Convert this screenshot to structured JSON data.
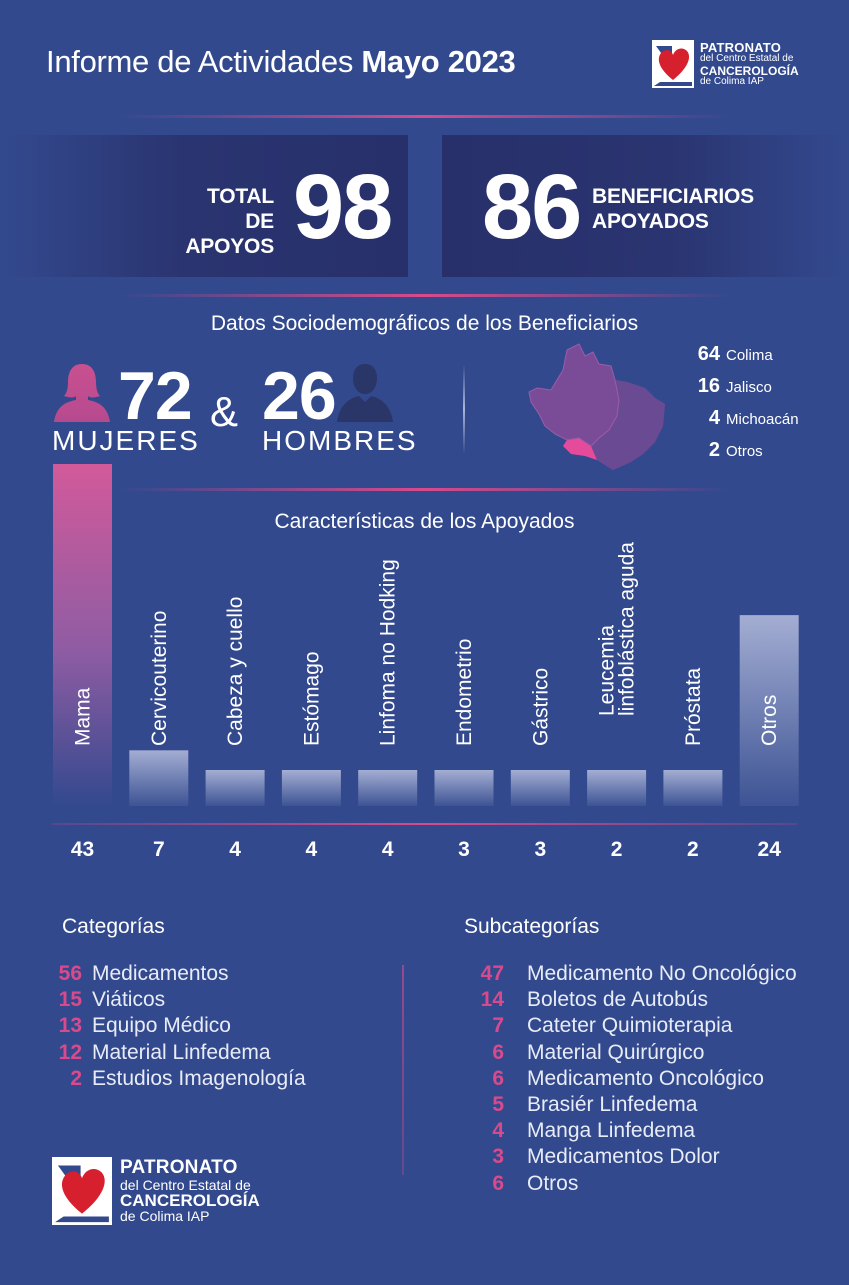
{
  "header": {
    "title_prefix": "Informe de Actividades",
    "title_bold": "Mayo 2023"
  },
  "logo": {
    "line1": "PATRONATO",
    "line2": "del Centro Estatal de",
    "line3": "CANCEROLOGÍA",
    "line4": "de Colima IAP"
  },
  "totals": {
    "apoyos_label_1": "TOTAL DE",
    "apoyos_label_2": "APOYOS",
    "apoyos_value": "98",
    "beneficiarios_value": "86",
    "beneficiarios_label_1": "BENEFICIARIOS",
    "beneficiarios_label_2": "APOYADOS"
  },
  "socio": {
    "title": "Datos Sociodemográficos de los Beneficiarios",
    "women_value": "72",
    "women_label": "MUJERES",
    "amp": "&",
    "men_value": "26",
    "men_label": "HOMBRES",
    "states": [
      {
        "value": "64",
        "name": "Colima"
      },
      {
        "value": "16",
        "name": "Jalisco"
      },
      {
        "value": "4",
        "name": "Michoacán"
      },
      {
        "value": "2",
        "name": "Otros"
      }
    ]
  },
  "colors": {
    "background": "#33498e",
    "accent_pink": "#d84a8c",
    "panel_dark": "#27306a",
    "bar_light": "#9aa6cf"
  },
  "icons": {
    "woman": "woman-silhouette-icon",
    "man": "man-silhouette-icon",
    "map": "jalisco-colima-map-icon",
    "logo": "heart-logo-icon"
  },
  "chart_data": {
    "type": "bar",
    "title": "Características de los Apoyados",
    "categories": [
      "Mama",
      "Cervicouterino",
      "Cabeza y cuello",
      "Estómago",
      "Linfoma no Hodking",
      "Endometrio",
      "Gástrico",
      "Leucemia linfoblástica aguda",
      "Próstata",
      "Otros"
    ],
    "category_lines": [
      [
        "Mama"
      ],
      [
        "Cervicouterino"
      ],
      [
        "Cabeza y cuello"
      ],
      [
        "Estómago"
      ],
      [
        "Linfoma no Hodking"
      ],
      [
        "Endometrio"
      ],
      [
        "Gástrico"
      ],
      [
        "Leucemia",
        "linfoblástica aguda"
      ],
      [
        "Próstata"
      ],
      [
        "Otros"
      ]
    ],
    "values": [
      43,
      7,
      4,
      4,
      4,
      3,
      3,
      2,
      2,
      24
    ],
    "value_labels": [
      "43",
      "7",
      "4",
      "4",
      "4",
      "3",
      "3",
      "2",
      "2",
      "24"
    ],
    "ylim": [
      0,
      43
    ],
    "grid": false,
    "legend": "none",
    "xlabel": "",
    "ylabel": ""
  },
  "categorias": {
    "title": "Categorías",
    "items": [
      {
        "value": "56",
        "label": "Medicamentos"
      },
      {
        "value": "15",
        "label": "Viáticos"
      },
      {
        "value": "13",
        "label": "Equipo Médico"
      },
      {
        "value": "12",
        "label": "Material Linfedema"
      },
      {
        "value": "2",
        "label": "Estudios Imagenología"
      }
    ]
  },
  "subcategorias": {
    "title": "Subcategorías",
    "items": [
      {
        "value": "47",
        "label": "Medicamento No Oncológico"
      },
      {
        "value": "14",
        "label": "Boletos de Autobús"
      },
      {
        "value": "7",
        "label": "Cateter Quimioterapia"
      },
      {
        "value": "6",
        "label": "Material Quirúrgico"
      },
      {
        "value": "6",
        "label": "Medicamento Oncológico"
      },
      {
        "value": "5",
        "label": "Brasiér Linfedema"
      },
      {
        "value": "4",
        "label": "Manga Linfedema"
      },
      {
        "value": "3",
        "label": "Medicamentos Dolor"
      },
      {
        "value": "6",
        "label": "Otros"
      }
    ]
  }
}
